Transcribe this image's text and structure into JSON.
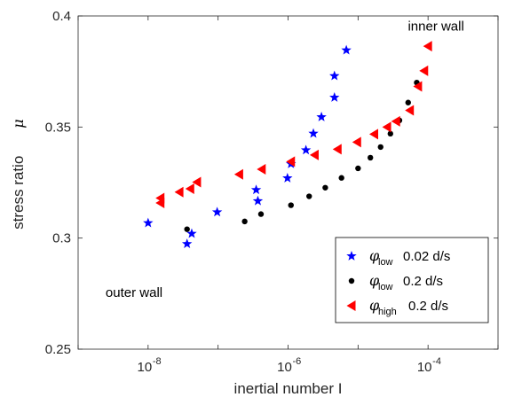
{
  "chart_data": {
    "type": "scatter",
    "title": "",
    "xlabel": "inertial number I",
    "ylabel": "stress ratio",
    "ylabel_symbol": "μ",
    "x_scale": "log",
    "xlim": [
      1e-09,
      0.001
    ],
    "ylim": [
      0.25,
      0.4
    ],
    "x_ticks": [
      {
        "value": 1e-08,
        "base": "10",
        "exp": "-8"
      },
      {
        "value": 1e-06,
        "base": "10",
        "exp": "-6"
      },
      {
        "value": 0.0001,
        "base": "10",
        "exp": "-4"
      }
    ],
    "y_ticks": [
      {
        "value": 0.25,
        "label": "0.25"
      },
      {
        "value": 0.3,
        "label": "0.3"
      },
      {
        "value": 0.35,
        "label": "0.35"
      },
      {
        "value": 0.4,
        "label": "0.4"
      }
    ],
    "grid": false,
    "legend_position": "bottom-right",
    "annotations": [
      {
        "text": "inner wall",
        "x": 0.00013,
        "y": 0.3935
      },
      {
        "text": "outer wall",
        "x": 6.3e-09,
        "y": 0.2735
      }
    ],
    "series": [
      {
        "name": "φ low 0.02 d/s",
        "symbol": "φ",
        "subscript": "low",
        "rate": "0.02 d/s",
        "marker": "star",
        "color": "#0000ff",
        "points": [
          [
            1e-08,
            0.3068
          ],
          [
            3.6e-08,
            0.2974
          ],
          [
            4.2e-08,
            0.302
          ],
          [
            9.7e-08,
            0.3117
          ],
          [
            3.5e-07,
            0.3217
          ],
          [
            3.7e-07,
            0.3167
          ],
          [
            9.8e-07,
            0.327
          ],
          [
            1.1e-06,
            0.3334
          ],
          [
            1.8e-06,
            0.3396
          ],
          [
            2.3e-06,
            0.3471
          ],
          [
            3e-06,
            0.3545
          ],
          [
            4.6e-06,
            0.3633
          ],
          [
            4.6e-06,
            0.373
          ],
          [
            6.8e-06,
            0.3846
          ]
        ]
      },
      {
        "name": "φ low 0.2 d/s",
        "symbol": "φ",
        "subscript": "low",
        "rate": "0.2 d/s",
        "marker": "circle",
        "color": "#000000",
        "points": [
          [
            3.6e-08,
            0.304
          ],
          [
            2.4e-07,
            0.3075
          ],
          [
            4.1e-07,
            0.3108
          ],
          [
            1.1e-06,
            0.3148
          ],
          [
            2e-06,
            0.3188
          ],
          [
            3.4e-06,
            0.3227
          ],
          [
            5.8e-06,
            0.3271
          ],
          [
            1e-05,
            0.3314
          ],
          [
            1.5e-05,
            0.3362
          ],
          [
            2.1e-05,
            0.341
          ],
          [
            2.9e-05,
            0.347
          ],
          [
            3.9e-05,
            0.353
          ],
          [
            5.2e-05,
            0.361
          ],
          [
            6.9e-05,
            0.37
          ]
        ]
      },
      {
        "name": "φ high 0.2 d/s",
        "symbol": "φ",
        "subscript": "high",
        "rate": "0.2 d/s",
        "marker": "triangle-left",
        "color": "#ff0000",
        "points": [
          [
            1.5e-08,
            0.3158
          ],
          [
            1.5e-08,
            0.318
          ],
          [
            2.8e-08,
            0.3207
          ],
          [
            4e-08,
            0.3222
          ],
          [
            5e-08,
            0.3252
          ],
          [
            2e-07,
            0.3287
          ],
          [
            4.2e-07,
            0.331
          ],
          [
            1.1e-06,
            0.3344
          ],
          [
            2.4e-06,
            0.3374
          ],
          [
            5.1e-06,
            0.34
          ],
          [
            9.7e-06,
            0.3432
          ],
          [
            1.7e-05,
            0.3468
          ],
          [
            2.6e-05,
            0.35
          ],
          [
            3.5e-05,
            0.3526
          ],
          [
            5.5e-05,
            0.3575
          ],
          [
            7.2e-05,
            0.3683
          ],
          [
            8.8e-05,
            0.3753
          ],
          [
            0.0001,
            0.3864
          ]
        ]
      }
    ]
  }
}
